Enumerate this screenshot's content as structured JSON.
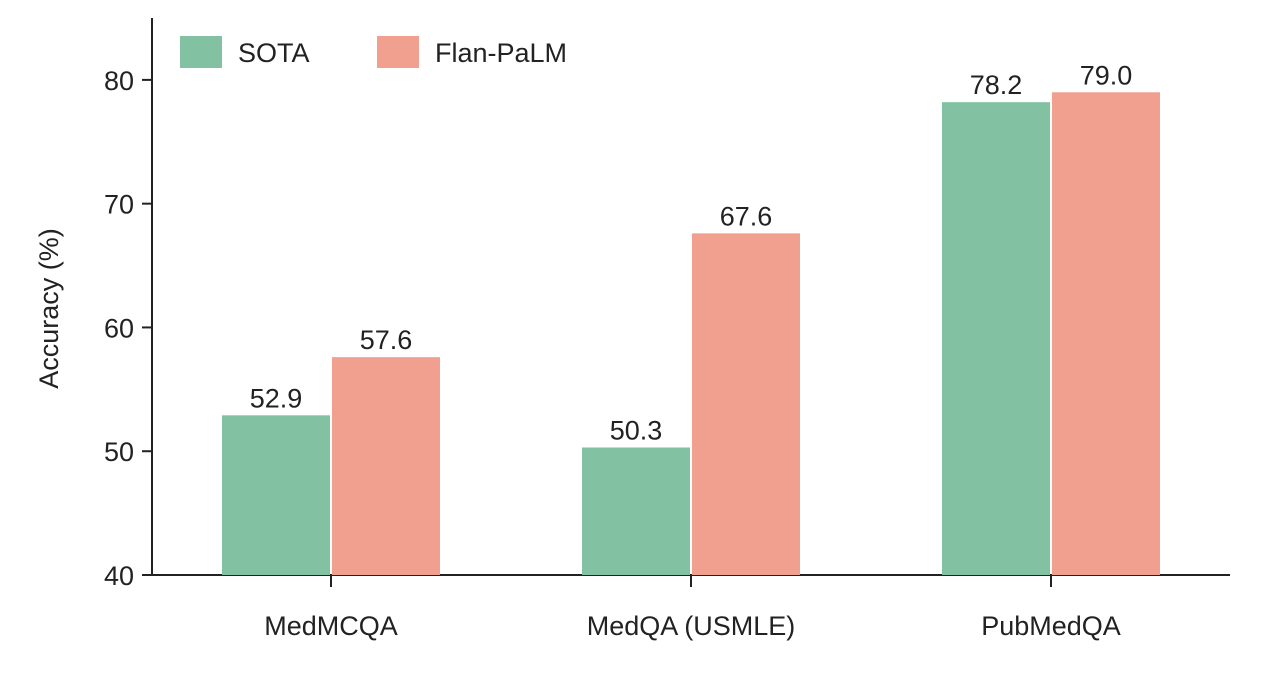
{
  "chart_data": {
    "type": "bar",
    "title": "",
    "xlabel": "",
    "ylabel": "Accuracy (%)",
    "ylim": [
      40,
      85
    ],
    "yticks": [
      40,
      50,
      60,
      70,
      80
    ],
    "categories": [
      "MedMCQA",
      "MedQA (USMLE)",
      "PubMedQA"
    ],
    "series": [
      {
        "name": "SOTA",
        "values": [
          52.9,
          50.3,
          78.2
        ],
        "labels": [
          "52.9",
          "50.3",
          "78.2"
        ],
        "color": "#82c2a3"
      },
      {
        "name": "Flan-PaLM",
        "values": [
          57.6,
          67.6,
          79.0
        ],
        "labels": [
          "57.6",
          "67.6",
          "79.0"
        ],
        "color": "#f19f8e"
      }
    ],
    "legend_position": "top-left",
    "grid": false,
    "axis_color": "#222222",
    "text_color": "#222222"
  }
}
